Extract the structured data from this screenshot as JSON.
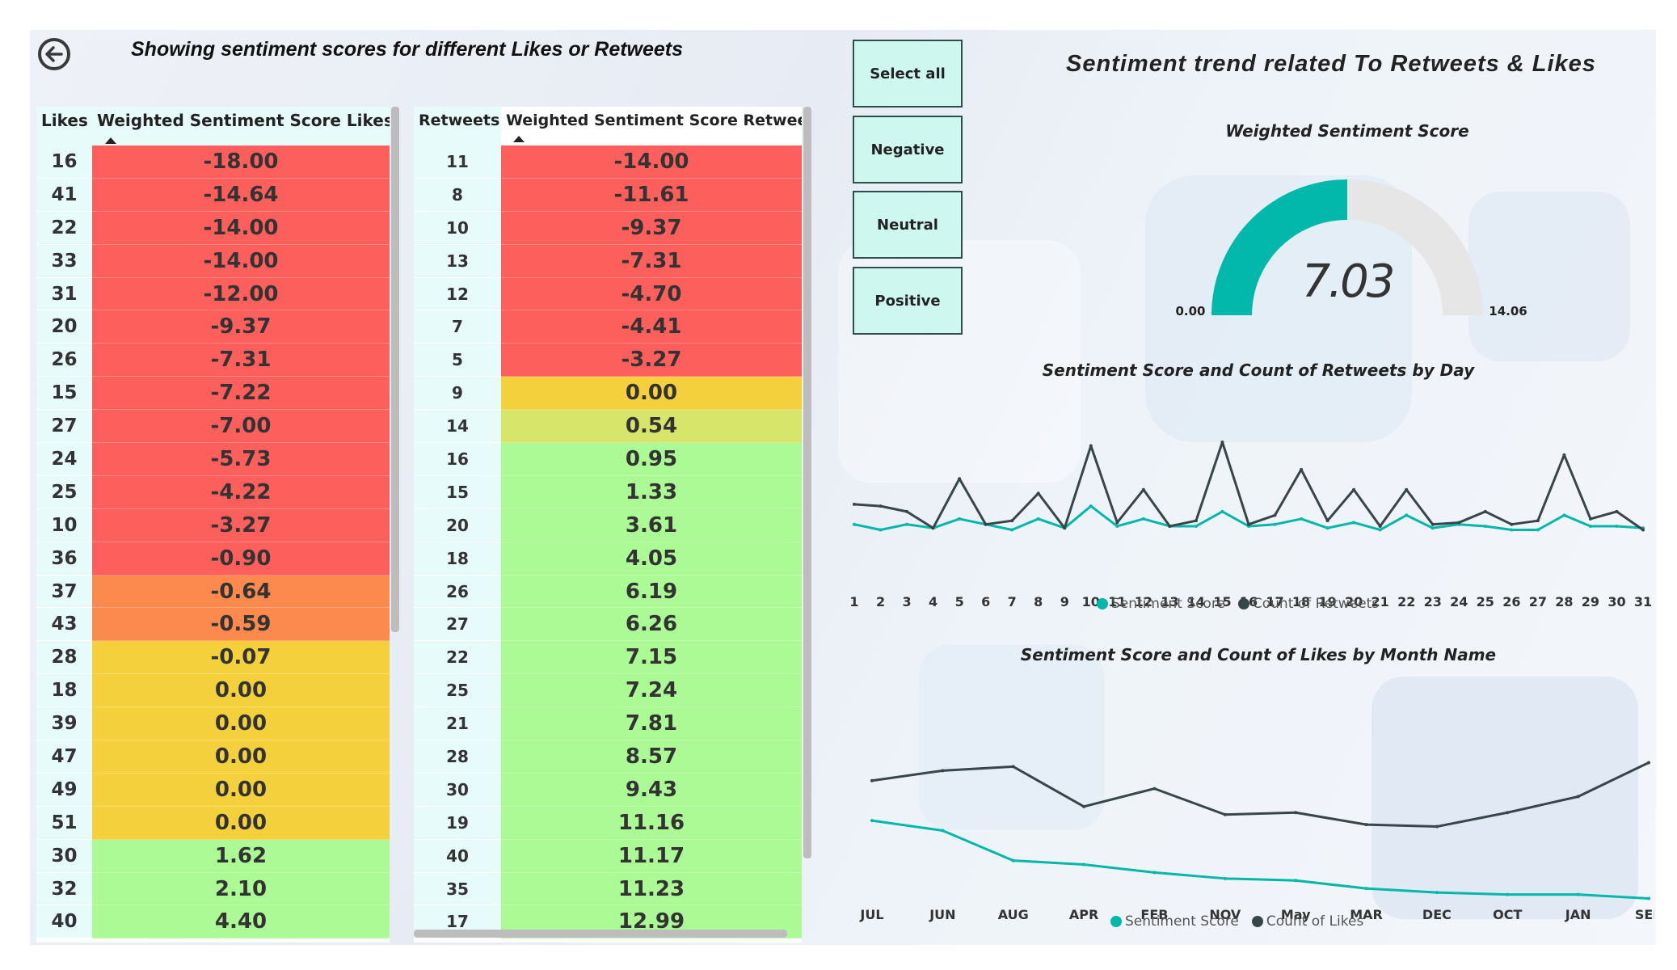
{
  "header": {
    "title": "Showing sentiment scores for different Likes or Retweets",
    "right_title": "Sentiment trend related To Retweets & Likes"
  },
  "likes_table": {
    "col_key": "Likes",
    "col_value": "Weighted Sentiment Score Likes",
    "rows": [
      {
        "k": "16",
        "v": "-18.00",
        "c": "#fd5f5c"
      },
      {
        "k": "41",
        "v": "-14.64",
        "c": "#fd5f5c"
      },
      {
        "k": "22",
        "v": "-14.00",
        "c": "#fd5f5c"
      },
      {
        "k": "33",
        "v": "-14.00",
        "c": "#fd5f5c"
      },
      {
        "k": "31",
        "v": "-12.00",
        "c": "#fd5f5c"
      },
      {
        "k": "20",
        "v": "-9.37",
        "c": "#fd5f5c"
      },
      {
        "k": "26",
        "v": "-7.31",
        "c": "#fd5f5c"
      },
      {
        "k": "15",
        "v": "-7.22",
        "c": "#fd5f5c"
      },
      {
        "k": "27",
        "v": "-7.00",
        "c": "#fd5f5c"
      },
      {
        "k": "24",
        "v": "-5.73",
        "c": "#fd5f5c"
      },
      {
        "k": "25",
        "v": "-4.22",
        "c": "#fd5f5c"
      },
      {
        "k": "10",
        "v": "-3.27",
        "c": "#fd5f5c"
      },
      {
        "k": "36",
        "v": "-0.90",
        "c": "#fd5f5c"
      },
      {
        "k": "37",
        "v": "-0.64",
        "c": "#fc894e"
      },
      {
        "k": "43",
        "v": "-0.59",
        "c": "#fc894e"
      },
      {
        "k": "28",
        "v": "-0.07",
        "c": "#f5d03d"
      },
      {
        "k": "18",
        "v": "0.00",
        "c": "#f5d03d"
      },
      {
        "k": "39",
        "v": "0.00",
        "c": "#f5d03d"
      },
      {
        "k": "47",
        "v": "0.00",
        "c": "#f5d03d"
      },
      {
        "k": "49",
        "v": "0.00",
        "c": "#f5d03d"
      },
      {
        "k": "51",
        "v": "0.00",
        "c": "#f5d03d"
      },
      {
        "k": "30",
        "v": "1.62",
        "c": "#acfa95"
      },
      {
        "k": "32",
        "v": "2.10",
        "c": "#acfa95"
      },
      {
        "k": "40",
        "v": "4.40",
        "c": "#acfa95"
      }
    ]
  },
  "retweets_table": {
    "col_key": "Retweets",
    "col_value": "Weighted Sentiment Score Retweets",
    "rows": [
      {
        "k": "11",
        "v": "-14.00",
        "c": "#fd5f5c"
      },
      {
        "k": "8",
        "v": "-11.61",
        "c": "#fd5f5c"
      },
      {
        "k": "10",
        "v": "-9.37",
        "c": "#fd5f5c"
      },
      {
        "k": "13",
        "v": "-7.31",
        "c": "#fd5f5c"
      },
      {
        "k": "12",
        "v": "-4.70",
        "c": "#fd5f5c"
      },
      {
        "k": "7",
        "v": "-4.41",
        "c": "#fd5f5c"
      },
      {
        "k": "5",
        "v": "-3.27",
        "c": "#fd5f5c"
      },
      {
        "k": "9",
        "v": "0.00",
        "c": "#f5d03d"
      },
      {
        "k": "14",
        "v": "0.54",
        "c": "#d7e66a"
      },
      {
        "k": "16",
        "v": "0.95",
        "c": "#acfa95"
      },
      {
        "k": "15",
        "v": "1.33",
        "c": "#acfa95"
      },
      {
        "k": "20",
        "v": "3.61",
        "c": "#acfa95"
      },
      {
        "k": "18",
        "v": "4.05",
        "c": "#acfa95"
      },
      {
        "k": "26",
        "v": "6.19",
        "c": "#acfa95"
      },
      {
        "k": "27",
        "v": "6.26",
        "c": "#acfa95"
      },
      {
        "k": "22",
        "v": "7.15",
        "c": "#acfa95"
      },
      {
        "k": "25",
        "v": "7.24",
        "c": "#acfa95"
      },
      {
        "k": "21",
        "v": "7.81",
        "c": "#acfa95"
      },
      {
        "k": "28",
        "v": "8.57",
        "c": "#acfa95"
      },
      {
        "k": "30",
        "v": "9.43",
        "c": "#acfa95"
      },
      {
        "k": "19",
        "v": "11.16",
        "c": "#acfa95"
      },
      {
        "k": "40",
        "v": "11.17",
        "c": "#acfa95"
      },
      {
        "k": "35",
        "v": "11.23",
        "c": "#acfa95"
      },
      {
        "k": "17",
        "v": "12.99",
        "c": "#acfa95"
      }
    ]
  },
  "slicer": {
    "buttons": [
      "Select all",
      "Negative",
      "Neutral",
      "Positive"
    ]
  },
  "colors": {
    "accent_teal": "#01b8aa",
    "dark_line": "#374649",
    "gauge_bg": "#e6e6e6",
    "key_bg": "#e6fbfa",
    "slicer_bg": "#cef7f0"
  },
  "gauge": {
    "title": "Weighted Sentiment Score",
    "value": 7.03,
    "value_label": "7.03",
    "min": 0,
    "max": 14.06,
    "min_label": "0.00",
    "max_label": "14.06"
  },
  "chart_data": [
    {
      "type": "line",
      "title": "Sentiment Score and Count of Retweets by Day",
      "categories": [
        "1",
        "2",
        "3",
        "4",
        "5",
        "6",
        "7",
        "8",
        "9",
        "10",
        "11",
        "12",
        "13",
        "14",
        "15",
        "16",
        "17",
        "18",
        "19",
        "20",
        "21",
        "22",
        "23",
        "24",
        "25",
        "26",
        "27",
        "28",
        "29",
        "30",
        "31"
      ],
      "series": [
        {
          "name": "Sentiment Score",
          "color": "#01b8aa",
          "values": [
            5,
            2,
            5,
            3,
            8,
            5,
            2,
            8,
            3,
            15,
            4,
            8,
            4,
            4,
            12,
            4,
            5,
            8,
            3,
            6,
            2,
            10,
            3,
            5,
            4,
            2,
            2,
            10,
            4,
            4,
            3
          ]
        },
        {
          "name": "Count of Retweets",
          "color": "#374649",
          "values": [
            16,
            15,
            12,
            3,
            30,
            5,
            7,
            22,
            3,
            48,
            6,
            24,
            4,
            7,
            50,
            5,
            10,
            35,
            7,
            24,
            4,
            24,
            5,
            6,
            12,
            5,
            7,
            43,
            8,
            12,
            2
          ]
        }
      ],
      "legend": "bottom-center"
    },
    {
      "type": "line",
      "title": "Sentiment Score and Count of Likes by Month Name",
      "categories": [
        "JUL",
        "JUN",
        "AUG",
        "APR",
        "FEB",
        "NOV",
        "May",
        "MAR",
        "DEC",
        "OCT",
        "JAN",
        "SEP"
      ],
      "series": [
        {
          "name": "Sentiment Score",
          "color": "#01b8aa",
          "values": [
            40,
            35,
            20,
            18,
            14,
            11,
            10,
            6,
            4,
            3,
            3,
            1
          ]
        },
        {
          "name": "Count of Likes",
          "color": "#374649",
          "values": [
            60,
            65,
            67,
            47,
            56,
            43,
            44,
            38,
            37,
            44,
            52,
            69
          ]
        }
      ],
      "legend": "bottom-center"
    }
  ]
}
